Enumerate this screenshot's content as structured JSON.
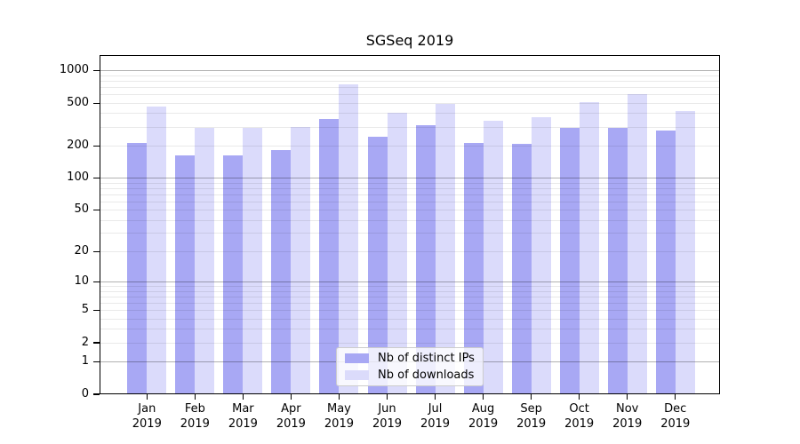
{
  "figure": {
    "background": "#ffffff"
  },
  "chart_data": {
    "type": "bar",
    "title": "SGSeq 2019",
    "categories": [
      "Jan",
      "Feb",
      "Mar",
      "Apr",
      "May",
      "Jun",
      "Jul",
      "Aug",
      "Sep",
      "Oct",
      "Nov",
      "Dec"
    ],
    "year_label": "2019",
    "series": [
      {
        "name": "Nb of distinct IPs",
        "color": "#a8a8f4",
        "values": [
          214,
          162,
          164,
          183,
          356,
          246,
          315,
          214,
          210,
          295,
          295,
          276
        ]
      },
      {
        "name": "Nb of downloads",
        "color": "#dbdbfb",
        "values": [
          461,
          296,
          296,
          302,
          746,
          407,
          497,
          344,
          370,
          513,
          612,
          425
        ]
      }
    ],
    "xlabel": "",
    "ylabel": "",
    "yscale": "log1p",
    "ylim": [
      0,
      1400
    ],
    "yticks": [
      1000,
      500,
      200,
      100,
      50,
      20,
      10,
      5,
      2,
      1,
      0
    ],
    "grid": {
      "on": true,
      "major_lines": [
        1,
        10,
        100,
        1000
      ],
      "minor_lines": [
        2,
        3,
        4,
        5,
        6,
        7,
        8,
        9,
        20,
        30,
        40,
        50,
        60,
        70,
        80,
        90,
        200,
        300,
        400,
        500,
        600,
        700,
        800,
        900
      ],
      "drawn_over_bars": true
    },
    "legend": {
      "position": "lower center",
      "entries": [
        "Nb of distinct IPs",
        "Nb of downloads"
      ]
    }
  }
}
